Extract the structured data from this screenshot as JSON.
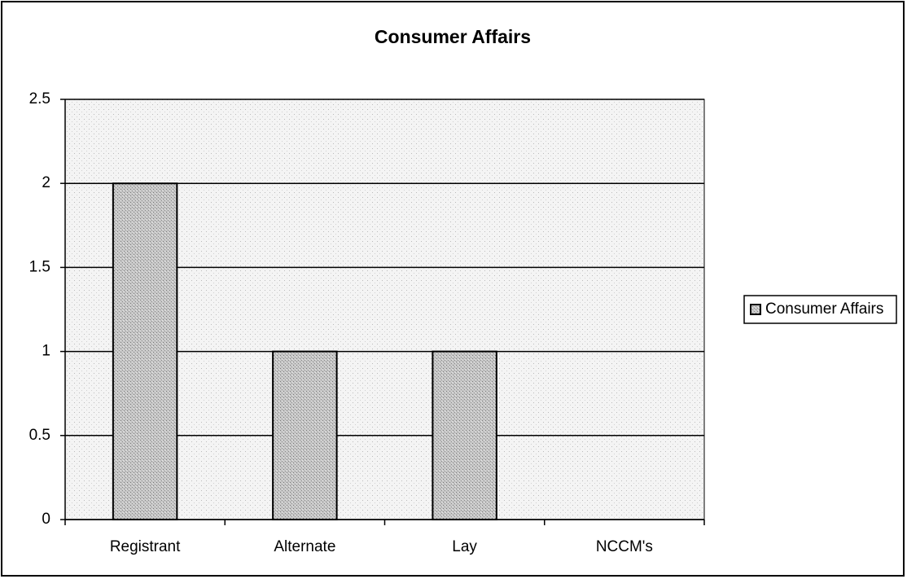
{
  "chart_data": {
    "type": "bar",
    "title": "Consumer Affairs",
    "categories": [
      "Registrant",
      "Alternate",
      "Lay",
      "NCCM's"
    ],
    "series": [
      {
        "name": "Consumer Affairs",
        "color": "#b8b8b8",
        "values": [
          2,
          1,
          1,
          0
        ]
      }
    ],
    "ylim": [
      0,
      2.5
    ],
    "yticks": [
      0,
      0.5,
      1,
      1.5,
      2,
      2.5
    ],
    "grid": true,
    "legend": "right"
  }
}
